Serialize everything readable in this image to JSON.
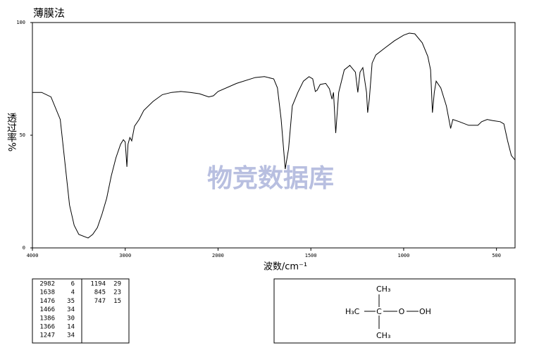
{
  "title": "薄膜法",
  "watermark": "物竞数据库",
  "chart_data": {
    "type": "line",
    "ylabel": "透过率%",
    "xlabel": "波数/cm⁻¹",
    "xlim": [
      4000,
      400
    ],
    "x_break": 2000,
    "x_break_ratio": 2,
    "xticks": [
      4000,
      3000,
      2000,
      1500,
      1000,
      500
    ],
    "ylim": [
      0,
      100
    ],
    "yticks": [
      0,
      50,
      100
    ],
    "x": [
      4000,
      3900,
      3800,
      3700,
      3650,
      3600,
      3550,
      3500,
      3400,
      3350,
      3300,
      3250,
      3200,
      3150,
      3100,
      3050,
      3020,
      3000,
      2982,
      2970,
      2950,
      2930,
      2900,
      2850,
      2800,
      2700,
      2600,
      2500,
      2400,
      2300,
      2200,
      2100,
      2050,
      2000,
      1900,
      1800,
      1750,
      1700,
      1680,
      1660,
      1638,
      1620,
      1600,
      1570,
      1540,
      1510,
      1490,
      1476,
      1466,
      1450,
      1420,
      1400,
      1386,
      1378,
      1366,
      1350,
      1320,
      1290,
      1260,
      1247,
      1235,
      1220,
      1200,
      1194,
      1185,
      1170,
      1150,
      1100,
      1050,
      1000,
      970,
      940,
      900,
      870,
      855,
      845,
      835,
      825,
      800,
      770,
      747,
      735,
      700,
      650,
      600,
      580,
      550,
      520,
      480,
      460,
      440,
      420,
      400
    ],
    "series": [
      {
        "color": "#000000",
        "values": [
          69,
          69,
          67,
          57,
          38,
          19,
          10,
          6,
          4.4,
          6,
          9,
          15,
          22,
          32,
          40,
          46,
          48,
          47,
          36,
          46,
          49,
          47.5,
          54,
          57,
          61,
          65,
          68,
          69,
          69.4,
          69,
          68.4,
          67,
          67.5,
          69.4,
          73,
          75.6,
          76,
          75,
          71,
          57,
          35,
          44,
          63,
          69,
          74,
          76,
          75,
          69.4,
          70,
          72.5,
          73,
          70.6,
          66,
          69,
          51,
          69,
          79,
          81,
          78,
          69,
          78,
          80,
          69,
          60,
          66,
          82,
          85.6,
          88.8,
          91.9,
          94.4,
          95.3,
          95,
          91,
          85,
          79,
          60,
          69,
          74,
          71,
          63,
          53,
          57,
          56,
          54.4,
          54.4,
          56,
          57,
          56.5,
          56,
          55,
          47.5,
          41,
          39
        ]
      }
    ]
  },
  "peak_table": {
    "rows": [
      [
        2982,
        6
      ],
      [
        1638,
        4
      ],
      [
        1476,
        35
      ],
      [
        1466,
        34
      ],
      [
        1386,
        30
      ],
      [
        1366,
        14
      ],
      [
        1247,
        34
      ],
      [
        1194,
        29
      ],
      [
        845,
        23
      ],
      [
        747,
        15
      ]
    ]
  },
  "structure": {
    "top": "CH₃",
    "left": "H₃C",
    "center": "C",
    "oxygen": "O",
    "right": "OH",
    "bottom": "CH₃"
  }
}
